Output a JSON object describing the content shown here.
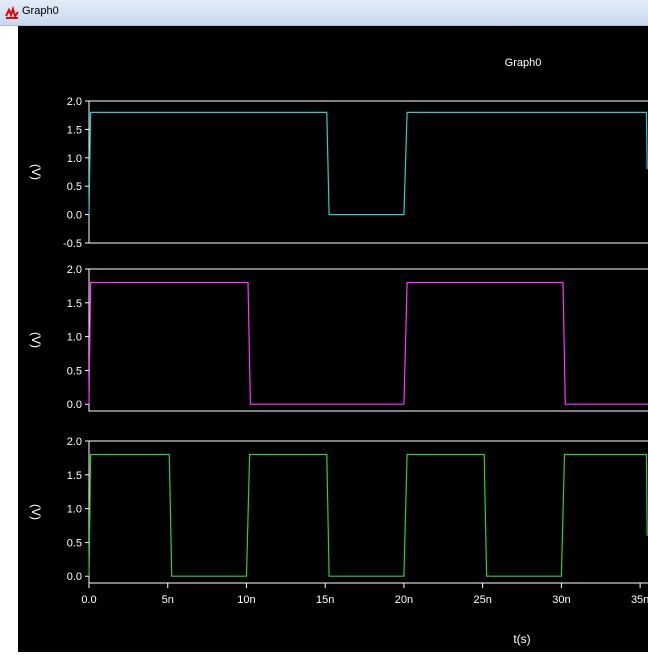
{
  "window": {
    "title": "Graph0",
    "icon": "waveform-app-icon"
  },
  "chart_data": {
    "type": "line",
    "title": "Graph0",
    "xlabel": "t(s)",
    "xlim": [
      0,
      35.5
    ],
    "x_ticks": [
      "0.0",
      "5n",
      "10n",
      "15n",
      "20n",
      "25n",
      "30n",
      "35n"
    ],
    "x_tick_values": [
      0,
      5,
      10,
      15,
      20,
      25,
      30,
      35
    ],
    "background": "#000000",
    "grid": false,
    "panels": [
      {
        "ylabel": "(V)",
        "ylim": [
          -0.5,
          2.0
        ],
        "y_ticks": [
          "2.0",
          "1.5",
          "1.0",
          "0.5",
          "0.0",
          "-0.5"
        ],
        "y_tick_values": [
          2.0,
          1.5,
          1.0,
          0.5,
          0.0,
          -0.5
        ],
        "series": [
          {
            "color": "#33cccc",
            "x": [
              0,
              0.1,
              15.1,
              15.25,
              20.0,
              20.2,
              35.4,
              35.45
            ],
            "y": [
              0,
              1.8,
              1.8,
              0,
              0,
              1.8,
              1.8,
              0.8
            ]
          }
        ]
      },
      {
        "ylabel": "(V)",
        "ylim": [
          -0.1,
          2.0
        ],
        "y_ticks": [
          "2.0",
          "1.5",
          "1.0",
          "0.5",
          "0.0"
        ],
        "y_tick_values": [
          2.0,
          1.5,
          1.0,
          0.5,
          0.0
        ],
        "series": [
          {
            "color": "#ff33ff",
            "x": [
              0,
              0.1,
              10.1,
              10.25,
              20.0,
              20.2,
              30.1,
              30.25,
              35.5
            ],
            "y": [
              0,
              1.8,
              1.8,
              0,
              0,
              1.8,
              1.8,
              0,
              0
            ]
          }
        ]
      },
      {
        "ylabel": "(V)",
        "ylim": [
          -0.1,
          2.0
        ],
        "y_ticks": [
          "2.0",
          "1.5",
          "1.0",
          "0.5",
          "0.0"
        ],
        "y_tick_values": [
          2.0,
          1.5,
          1.0,
          0.5,
          0.0
        ],
        "series": [
          {
            "color": "#33cc33",
            "x": [
              0,
              0.1,
              5.1,
              5.25,
              10.0,
              10.2,
              15.1,
              15.25,
              20.0,
              20.2,
              25.1,
              25.25,
              30.0,
              30.2,
              35.4,
              35.45
            ],
            "y": [
              0,
              1.8,
              1.8,
              0,
              0,
              1.8,
              1.8,
              0,
              0,
              1.8,
              1.8,
              0,
              0,
              1.8,
              1.8,
              0.6
            ]
          }
        ]
      }
    ]
  }
}
